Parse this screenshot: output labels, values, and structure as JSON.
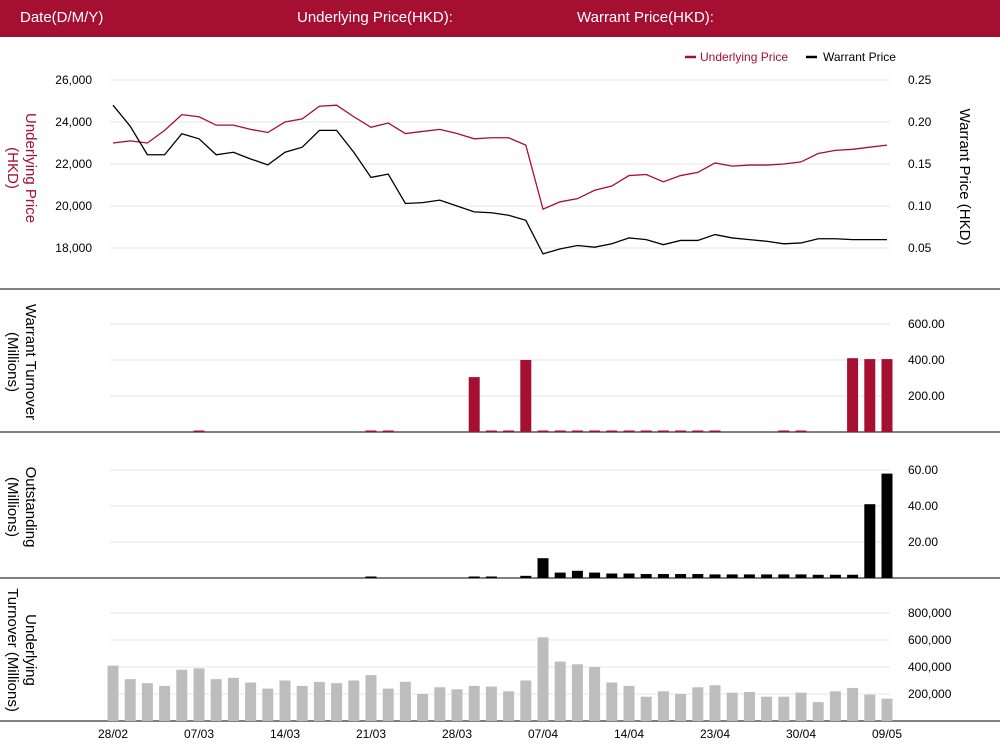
{
  "header": {
    "date_label": "Date(D/M/Y)",
    "underlying_label": "Underlying Price(HKD):",
    "warrant_label": "Warrant Price(HKD):"
  },
  "colors": {
    "header_bg": "#a50f32",
    "underlying": "#a50f32",
    "warrant": "#000000",
    "underlying_turnover": "#bdbdbd",
    "grid": "#e6e6e6"
  },
  "chart_data": [
    {
      "type": "line",
      "x_labels": [
        "28/02",
        "07/03",
        "14/03",
        "21/03",
        "28/03",
        "07/04",
        "14/04",
        "23/04",
        "30/04",
        "09/05"
      ],
      "legend_position": "top-right",
      "series": [
        {
          "name": "Underlying Price",
          "axis": "left",
          "ylabel": "Underlying Price (HKD)",
          "ylim": [
            16500,
            26500
          ],
          "yticks": [
            "26,000",
            "24,000",
            "22,000",
            "20,000",
            "18,000"
          ],
          "values": [
            23000,
            23100,
            23000,
            23600,
            24350,
            24250,
            23850,
            23850,
            23650,
            23500,
            24000,
            24150,
            24750,
            24800,
            24250,
            23750,
            23950,
            23450,
            23550,
            23650,
            23450,
            23200,
            23250,
            23250,
            22900,
            19850,
            20200,
            20350,
            20750,
            20950,
            21450,
            21500,
            21150,
            21450,
            21600,
            22050,
            21900,
            21950,
            21950,
            22000,
            22100,
            22500,
            22650,
            22700,
            22800,
            22900
          ]
        },
        {
          "name": "Warrant Price",
          "axis": "right",
          "ylabel": "Warrant  Price (HKD)",
          "ylim": [
            0.0125,
            0.2625
          ],
          "yticks": [
            "0.25",
            "0.20",
            "0.15",
            "0.10",
            "0.05"
          ],
          "values": [
            0.22,
            0.195,
            0.161,
            0.161,
            0.186,
            0.18,
            0.161,
            0.164,
            0.156,
            0.149,
            0.164,
            0.17,
            0.19,
            0.19,
            0.164,
            0.134,
            0.138,
            0.103,
            0.104,
            0.107,
            0.1,
            0.093,
            0.092,
            0.089,
            0.083,
            0.043,
            0.049,
            0.053,
            0.051,
            0.055,
            0.062,
            0.06,
            0.054,
            0.059,
            0.059,
            0.066,
            0.062,
            0.06,
            0.058,
            0.055,
            0.056,
            0.061,
            0.061,
            0.06,
            0.06,
            0.06
          ]
        }
      ]
    },
    {
      "type": "bar",
      "ylabel": "Warrant  Turnover (Millions)",
      "ylim": [
        0,
        650
      ],
      "yticks": [
        "600.00",
        "400.00",
        "200.00"
      ],
      "values": [
        0,
        0,
        0,
        0,
        0,
        0,
        0,
        0,
        0,
        0,
        0,
        0,
        0,
        0,
        0,
        0,
        0,
        0,
        0,
        0,
        0,
        0,
        0,
        0,
        0,
        0,
        0,
        0,
        0,
        0,
        0,
        0,
        0,
        0,
        0,
        0,
        0,
        0,
        0,
        0,
        0,
        0,
        0,
        0,
        0,
        0
      ],
      "bars": [
        {
          "i": 5,
          "v": 3
        },
        {
          "i": 15,
          "v": 3
        },
        {
          "i": 16,
          "v": 3
        },
        {
          "i": 21,
          "v": 305
        },
        {
          "i": 22,
          "v": 3
        },
        {
          "i": 23,
          "v": 3
        },
        {
          "i": 24,
          "v": 400
        },
        {
          "i": 25,
          "v": 3
        },
        {
          "i": 26,
          "v": 3
        },
        {
          "i": 27,
          "v": 3
        },
        {
          "i": 28,
          "v": 3
        },
        {
          "i": 29,
          "v": 3
        },
        {
          "i": 30,
          "v": 3
        },
        {
          "i": 31,
          "v": 3
        },
        {
          "i": 32,
          "v": 3
        },
        {
          "i": 33,
          "v": 3
        },
        {
          "i": 34,
          "v": 3
        },
        {
          "i": 35,
          "v": 3
        },
        {
          "i": 39,
          "v": 3
        },
        {
          "i": 40,
          "v": 3
        },
        {
          "i": 43,
          "v": 410
        },
        {
          "i": 44,
          "v": 405
        },
        {
          "i": 45,
          "v": 405
        }
      ]
    },
    {
      "type": "bar",
      "ylabel": "Outstanding (Millions)",
      "ylim": [
        0,
        65
      ],
      "yticks": [
        "60.00",
        "40.00",
        "20.00"
      ],
      "bars": [
        {
          "i": 15,
          "v": 0.5
        },
        {
          "i": 21,
          "v": 0.7
        },
        {
          "i": 22,
          "v": 0.8
        },
        {
          "i": 24,
          "v": 1.2
        },
        {
          "i": 25,
          "v": 11
        },
        {
          "i": 26,
          "v": 3
        },
        {
          "i": 27,
          "v": 4
        },
        {
          "i": 28,
          "v": 3
        },
        {
          "i": 29,
          "v": 2.5
        },
        {
          "i": 30,
          "v": 2.5
        },
        {
          "i": 31,
          "v": 2.2
        },
        {
          "i": 32,
          "v": 2.2
        },
        {
          "i": 33,
          "v": 2.2
        },
        {
          "i": 34,
          "v": 2.2
        },
        {
          "i": 35,
          "v": 2
        },
        {
          "i": 36,
          "v": 2
        },
        {
          "i": 37,
          "v": 2
        },
        {
          "i": 38,
          "v": 2
        },
        {
          "i": 39,
          "v": 2
        },
        {
          "i": 40,
          "v": 2
        },
        {
          "i": 41,
          "v": 1.8
        },
        {
          "i": 42,
          "v": 1.8
        },
        {
          "i": 43,
          "v": 1.8
        },
        {
          "i": 44,
          "v": 41
        },
        {
          "i": 45,
          "v": 58
        }
      ]
    },
    {
      "type": "bar",
      "ylabel": "Underlying Turnover (Millions)",
      "ylim": [
        0,
        900000
      ],
      "yticks": [
        "800,000",
        "600,000",
        "400,000",
        "200,000"
      ],
      "values": [
        410000,
        310000,
        280000,
        260000,
        380000,
        390000,
        310000,
        320000,
        285000,
        240000,
        300000,
        260000,
        290000,
        280000,
        300000,
        340000,
        240000,
        290000,
        200000,
        250000,
        235000,
        260000,
        255000,
        220000,
        300000,
        620000,
        440000,
        420000,
        400000,
        285000,
        260000,
        180000,
        220000,
        200000,
        250000,
        265000,
        210000,
        215000,
        180000,
        180000,
        210000,
        140000,
        220000,
        245000,
        195000,
        165000
      ]
    }
  ]
}
